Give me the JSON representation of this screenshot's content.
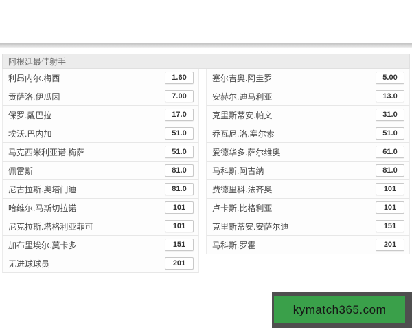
{
  "section": {
    "title": "阿根廷最佳射手"
  },
  "columns": {
    "left": [
      {
        "name": "利昂内尔.梅西",
        "odds": "1.60"
      },
      {
        "name": "贡萨洛.伊瓜因",
        "odds": "7.00"
      },
      {
        "name": "保罗.戴巴拉",
        "odds": "17.0"
      },
      {
        "name": "埃沃.巴内加",
        "odds": "51.0"
      },
      {
        "name": "马克西米利亚诺.梅萨",
        "odds": "51.0"
      },
      {
        "name": "佩雷斯",
        "odds": "81.0"
      },
      {
        "name": "尼古拉斯.奥塔门迪",
        "odds": "81.0"
      },
      {
        "name": "哈维尔.马斯切拉诺",
        "odds": "101"
      },
      {
        "name": "尼克拉斯.塔格利亚菲可",
        "odds": "101"
      },
      {
        "name": "加布里埃尔.莫卡多",
        "odds": "151"
      },
      {
        "name": "无进球球员",
        "odds": "201"
      }
    ],
    "right": [
      {
        "name": "塞尔吉奥.阿圭罗",
        "odds": "5.00"
      },
      {
        "name": "安赫尔.迪马利亚",
        "odds": "13.0"
      },
      {
        "name": "克里斯蒂安.帕文",
        "odds": "31.0"
      },
      {
        "name": "乔瓦尼.洛.塞尔索",
        "odds": "51.0"
      },
      {
        "name": "爱德华多.萨尔维奥",
        "odds": "61.0"
      },
      {
        "name": "马科斯.阿古纳",
        "odds": "81.0"
      },
      {
        "name": "费德里科.法齐奥",
        "odds": "101"
      },
      {
        "name": "卢卡斯.比格利亚",
        "odds": "101"
      },
      {
        "name": "克里斯蒂安.安萨尔迪",
        "odds": "151"
      },
      {
        "name": "马科斯.罗霍",
        "odds": "201"
      }
    ]
  },
  "watermark": {
    "text": "kymatch365.com"
  },
  "colors": {
    "header_bg": "#ececec",
    "row_border": "#e7e7e7",
    "odds_border": "#c9c9c9",
    "watermark_frame": "#4f4f4f",
    "watermark_green": "#3aa04a"
  }
}
